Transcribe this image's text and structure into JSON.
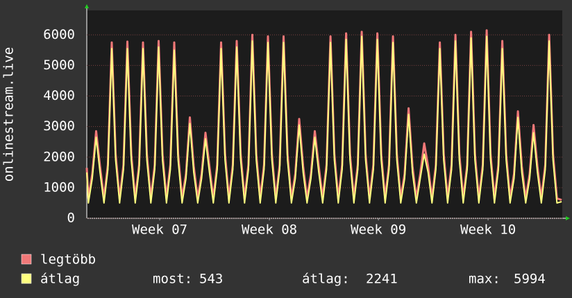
{
  "chart_data": {
    "type": "line",
    "y_label": "onlinestream.live",
    "x": [
      0,
      0.1,
      0.35,
      0.6,
      0.85,
      1.1,
      1.35,
      1.6,
      1.85,
      2.1,
      2.35,
      2.6,
      2.85,
      3.1,
      3.35,
      3.6,
      3.85,
      4.1,
      4.35,
      4.6,
      4.85,
      5.1,
      5.35,
      5.6,
      5.85,
      6.1,
      6.35,
      6.6,
      6.85,
      7.1,
      7.35,
      7.6,
      7.85,
      8.1,
      8.35,
      8.6,
      8.85,
      9.1,
      9.35,
      9.6,
      9.85,
      10.1,
      10.35,
      10.6,
      10.85,
      11.1,
      11.35,
      11.6,
      11.85,
      12.1,
      12.35,
      12.6,
      12.85,
      13.1,
      13.35,
      13.6,
      13.85,
      14.1,
      14.35,
      14.6,
      14.85,
      15.1,
      15.35,
      15.6,
      15.85,
      16.1,
      16.35,
      16.6,
      16.85,
      17.1,
      17.35,
      17.6,
      17.85,
      18.1,
      18.35,
      18.6,
      18.85,
      19.1,
      19.35,
      19.6,
      19.85,
      20.1,
      20.35,
      20.6,
      20.85,
      21.1,
      21.35,
      21.6,
      21.85,
      22.1,
      22.35,
      22.6,
      22.85,
      23.1,
      23.35,
      23.6,
      23.85,
      24.1,
      24.35,
      24.6,
      24.85,
      25.1,
      25.35,
      25.6,
      25.85,
      26.1,
      26.35,
      26.6,
      26.85,
      27.1,
      27.35,
      27.6,
      27.85,
      28.1,
      28.35,
      28.6,
      28.85,
      29.1,
      29.35,
      29.6,
      29.85,
      30.1,
      30.4
    ],
    "series": [
      {
        "name": "legtöbb",
        "color": "#f07878",
        "values": [
          1650,
          650,
          1450,
          2850,
          1700,
          650,
          1750,
          5750,
          2100,
          650,
          1750,
          5780,
          2100,
          650,
          1750,
          5750,
          2100,
          650,
          1750,
          5800,
          2100,
          650,
          1750,
          5750,
          2100,
          650,
          1450,
          3300,
          1700,
          650,
          1450,
          2800,
          1700,
          650,
          1750,
          5750,
          2100,
          650,
          1750,
          5800,
          2100,
          650,
          1750,
          6000,
          2100,
          650,
          1750,
          5950,
          2100,
          650,
          1750,
          5950,
          2100,
          650,
          1450,
          3250,
          1700,
          650,
          1450,
          2850,
          1700,
          650,
          1750,
          5950,
          2100,
          650,
          1750,
          6050,
          2100,
          650,
          1750,
          6100,
          2100,
          650,
          1750,
          6050,
          2100,
          650,
          1750,
          5950,
          2100,
          650,
          1450,
          3600,
          1700,
          650,
          1450,
          2450,
          1700,
          650,
          1750,
          5750,
          2100,
          650,
          1750,
          6000,
          2100,
          650,
          1750,
          6100,
          2100,
          650,
          1750,
          6150,
          2100,
          650,
          1750,
          5800,
          2100,
          650,
          1450,
          3500,
          1700,
          650,
          1450,
          3050,
          1700,
          650,
          1750,
          6000,
          2100,
          650,
          600
        ]
      },
      {
        "name": "átlag",
        "color": "#ffff80",
        "values": [
          1500,
          500,
          1300,
          2650,
          1500,
          500,
          1600,
          5550,
          1900,
          500,
          1600,
          5550,
          1900,
          500,
          1600,
          5550,
          1900,
          500,
          1600,
          5600,
          1900,
          500,
          1600,
          5500,
          1900,
          500,
          1300,
          3100,
          1500,
          500,
          1300,
          2600,
          1500,
          500,
          1600,
          5550,
          1900,
          500,
          1600,
          5600,
          1900,
          500,
          1600,
          5800,
          1900,
          500,
          1600,
          5750,
          1900,
          500,
          1600,
          5750,
          1900,
          500,
          1300,
          3050,
          1500,
          500,
          1300,
          2650,
          1500,
          500,
          1600,
          5750,
          1900,
          500,
          1600,
          5850,
          1900,
          500,
          1600,
          5950,
          1900,
          500,
          1600,
          5850,
          1900,
          500,
          1600,
          5750,
          1900,
          500,
          1300,
          3400,
          1500,
          500,
          1300,
          2100,
          1500,
          500,
          1600,
          5550,
          1900,
          500,
          1600,
          5800,
          1900,
          500,
          1600,
          5900,
          1900,
          500,
          1600,
          5950,
          1900,
          500,
          1600,
          5550,
          1900,
          500,
          1300,
          3300,
          1500,
          500,
          1300,
          2800,
          1500,
          500,
          1600,
          5800,
          1900,
          500,
          543
        ]
      }
    ],
    "xlim": [
      0,
      30.44
    ],
    "xticks": [
      {
        "value": 4.67,
        "label": "Week 07"
      },
      {
        "value": 11.69,
        "label": "Week 08"
      },
      {
        "value": 18.67,
        "label": "Week 09"
      },
      {
        "value": 25.69,
        "label": "Week 10"
      }
    ],
    "ylim": [
      0,
      6800
    ],
    "yticks": [
      0,
      1000,
      2000,
      3000,
      4000,
      5000,
      6000
    ],
    "grid": true,
    "stats": [
      {
        "label": "most:",
        "value": 543
      },
      {
        "label": "átlag:",
        "value": 2241
      },
      {
        "label": "max:",
        "value": 5994
      }
    ]
  }
}
